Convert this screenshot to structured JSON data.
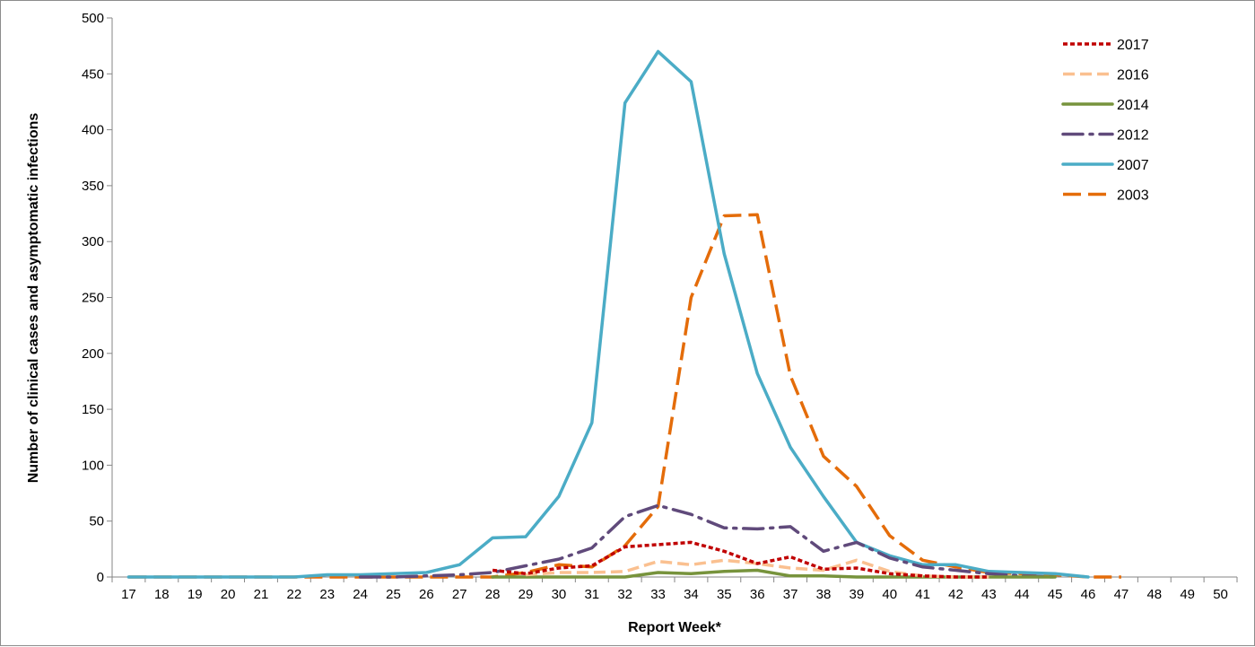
{
  "chart_data": {
    "type": "line",
    "title": "",
    "xlabel": "Report Week*",
    "ylabel": "Number of clinical cases and asymptomatic infections",
    "x": [
      17,
      18,
      19,
      20,
      21,
      22,
      23,
      24,
      25,
      26,
      27,
      28,
      29,
      30,
      31,
      32,
      33,
      34,
      35,
      36,
      37,
      38,
      39,
      40,
      41,
      42,
      43,
      44,
      45,
      46,
      47,
      48,
      49,
      50
    ],
    "xlim": [
      17,
      50
    ],
    "ylim": [
      0,
      500
    ],
    "yticks": [
      0,
      50,
      100,
      150,
      200,
      250,
      300,
      350,
      400,
      450,
      500
    ],
    "grid": false,
    "legend_position": "top-right",
    "series": [
      {
        "name": "2017",
        "color": "#c00000",
        "dash": "dotted",
        "x": [
          28,
          29,
          30,
          31,
          32,
          33,
          34,
          35,
          36,
          37,
          38,
          39,
          40,
          41,
          42,
          43
        ],
        "values": [
          6,
          3,
          8,
          10,
          27,
          29,
          31,
          23,
          12,
          18,
          7,
          8,
          3,
          1,
          0,
          0
        ]
      },
      {
        "name": "2016",
        "color": "#fac090",
        "dash": "dashed",
        "x": [
          29,
          30,
          31,
          32,
          33,
          34,
          35,
          36,
          37,
          38,
          39,
          40,
          41,
          42,
          43
        ],
        "values": [
          2,
          4,
          4,
          5,
          14,
          11,
          15,
          12,
          8,
          6,
          15,
          5,
          1,
          0,
          0
        ]
      },
      {
        "name": "2014",
        "color": "#77933c",
        "dash": "solid",
        "x": [
          28,
          29,
          30,
          31,
          32,
          33,
          34,
          35,
          36,
          37,
          38,
          39,
          40,
          41,
          42,
          43,
          44,
          45
        ],
        "values": [
          0,
          0,
          0,
          0,
          0,
          4,
          3,
          5,
          6,
          1,
          1,
          0,
          0,
          0,
          0,
          0,
          0,
          0
        ]
      },
      {
        "name": "2012",
        "color": "#604a7b",
        "dash": "dashdot",
        "x": [
          24,
          25,
          26,
          27,
          28,
          29,
          30,
          31,
          32,
          33,
          34,
          35,
          36,
          37,
          38,
          39,
          40,
          41,
          42,
          43,
          44,
          45
        ],
        "values": [
          0,
          0,
          1,
          2,
          4,
          10,
          16,
          26,
          54,
          64,
          56,
          44,
          43,
          45,
          23,
          31,
          17,
          9,
          6,
          3,
          1,
          0
        ]
      },
      {
        "name": "2007",
        "color": "#4bacc6",
        "dash": "solid",
        "x": [
          17,
          18,
          19,
          20,
          21,
          22,
          23,
          24,
          25,
          26,
          27,
          28,
          29,
          30,
          31,
          32,
          33,
          34,
          35,
          36,
          37,
          38,
          39,
          40,
          41,
          42,
          43,
          44,
          45,
          46
        ],
        "values": [
          0,
          0,
          0,
          0,
          0,
          0,
          2,
          2,
          3,
          4,
          11,
          35,
          36,
          72,
          138,
          424,
          470,
          443,
          289,
          182,
          116,
          72,
          31,
          19,
          11,
          11,
          5,
          4,
          3,
          0
        ]
      },
      {
        "name": "2003",
        "color": "#e46c0a",
        "dash": "longdash",
        "x": [
          17,
          18,
          19,
          20,
          21,
          22,
          23,
          24,
          25,
          26,
          27,
          28,
          29,
          30,
          31,
          32,
          33,
          34,
          35,
          36,
          37,
          38,
          39,
          40,
          41,
          42,
          43,
          44,
          45,
          46,
          47
        ],
        "values": [
          0,
          0,
          0,
          0,
          0,
          0,
          0,
          0,
          0,
          0,
          0,
          0,
          4,
          11,
          9,
          28,
          63,
          250,
          323,
          324,
          180,
          108,
          81,
          37,
          15,
          9,
          4,
          3,
          2,
          0,
          0
        ]
      }
    ]
  }
}
